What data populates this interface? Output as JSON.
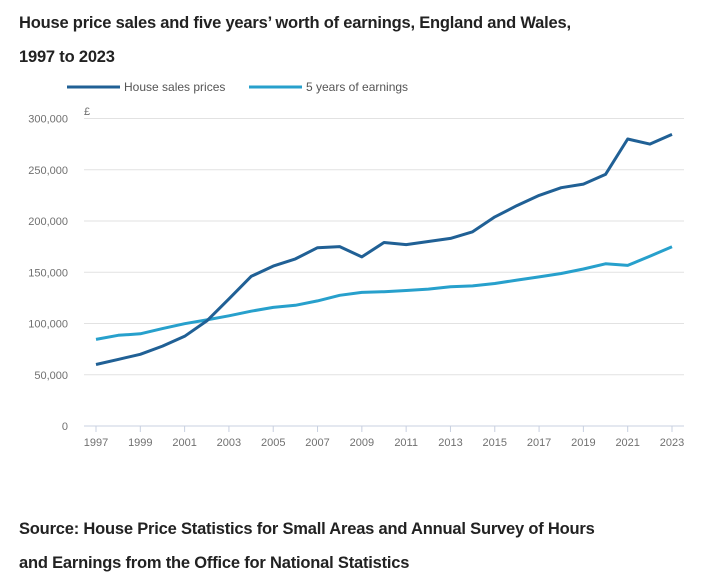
{
  "header": {
    "title_line1": "House price sales and five years’ worth of earnings, England and Wales,",
    "title_line2": "1997 to 2023"
  },
  "footer": {
    "source_line1": "Source: House Price Statistics for Small Areas and Annual Survey of Hours",
    "source_line2": "and Earnings from the Office for National Statistics"
  },
  "chart_data": {
    "type": "line",
    "title": "House price sales and five years’ worth of earnings, England and Wales, 1997 to 2023",
    "xlabel": "",
    "ylabel": "£",
    "y_unit_label": "£",
    "ylim": [
      0,
      300000
    ],
    "xlim": [
      1997,
      2023
    ],
    "grid": true,
    "legend_position": "top-left",
    "y_ticks": [
      0,
      50000,
      100000,
      150000,
      200000,
      250000,
      300000
    ],
    "y_tick_labels": [
      "0",
      "50,000",
      "100,000",
      "150,000",
      "200,000",
      "250,000",
      "300,000"
    ],
    "x_ticks": [
      1997,
      1999,
      2001,
      2003,
      2005,
      2007,
      2009,
      2011,
      2013,
      2015,
      2017,
      2019,
      2021,
      2023
    ],
    "x_tick_labels": [
      "1997",
      "1999",
      "2001",
      "2003",
      "2005",
      "2007",
      "2009",
      "2011",
      "2013",
      "2015",
      "2017",
      "2019",
      "2021",
      "2023"
    ],
    "x": [
      1997,
      1998,
      1999,
      2000,
      2001,
      2002,
      2003,
      2004,
      2005,
      2006,
      2007,
      2008,
      2009,
      2010,
      2011,
      2012,
      2013,
      2014,
      2015,
      2016,
      2017,
      2018,
      2019,
      2020,
      2021,
      2022,
      2023
    ],
    "series": [
      {
        "name": "House sales prices",
        "color": "#206095",
        "values": [
          60000,
          65000,
          70000,
          78000,
          87500,
          102500,
          124000,
          146000,
          156000,
          163000,
          174000,
          175000,
          165000,
          179000,
          177000,
          180000,
          183000,
          189500,
          204000,
          215000,
          225000,
          232500,
          236000,
          245500,
          280000,
          275000,
          284500
        ]
      },
      {
        "name": "5 years of earnings",
        "color": "#27A0CC",
        "values": [
          84500,
          88500,
          90000,
          95000,
          99800,
          103500,
          107500,
          112000,
          115700,
          117800,
          122000,
          127500,
          130300,
          131000,
          132200,
          133600,
          135800,
          136700,
          139000,
          142300,
          145500,
          148800,
          153200,
          158200,
          156700,
          165700,
          174800
        ]
      }
    ]
  }
}
